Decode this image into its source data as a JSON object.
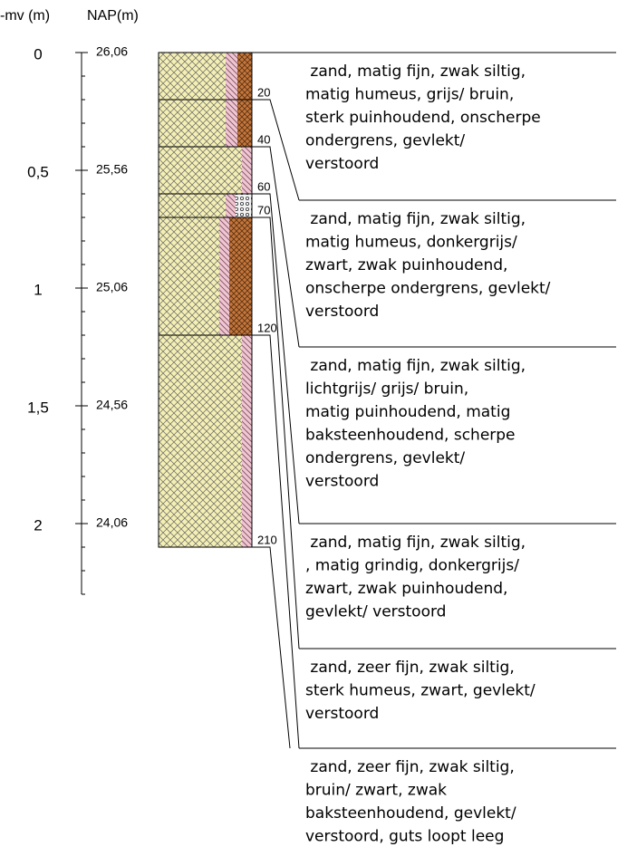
{
  "header": {
    "mv_label": "-mv (m)",
    "nap_label": "NAP(m)"
  },
  "axis": {
    "range": [
      0,
      2.3
    ],
    "minor_step": 0.1,
    "ticks": [
      0,
      {
        "value": 0.5,
        "label": "0,5"
      },
      1,
      {
        "value": 1.5,
        "label": "1,5"
      },
      2
    ],
    "nap_labels": [
      "26,06",
      "25,56",
      "25,06",
      "24,56",
      "24,06"
    ]
  },
  "layers": [
    {
      "bottom": 20,
      "description": [
        " zand, matig fijn, zwak siltig,",
        "matig humeus, grijs/ bruin,",
        "sterk puinhoudend, onscherpe",
        "ondergrens, gevlekt/",
        "verstoord"
      ]
    },
    {
      "bottom": 40,
      "description": [
        " zand, matig fijn, zwak siltig,",
        "matig humeus, donkergrijs/",
        "zwart, zwak puinhoudend,",
        "onscherpe ondergrens, gevlekt/",
        "verstoord"
      ]
    },
    {
      "bottom": 60,
      "description": [
        " zand, matig fijn, zwak siltig,",
        "lichtgrijs/ grijs/ bruin,",
        "matig puinhoudend, matig",
        "baksteenhoudend, scherpe",
        "ondergrens, gevlekt/",
        "verstoord"
      ]
    },
    {
      "bottom": 70,
      "description": [
        " zand, matig fijn, zwak siltig,",
        ", matig grindig, donkergrijs/",
        "zwart, zwak puinhoudend,",
        "gevlekt/ verstoord"
      ]
    },
    {
      "bottom": 120,
      "description": [
        " zand, zeer fijn, zwak siltig,",
        "sterk humeus, zwart, gevlekt/",
        "verstoord"
      ]
    },
    {
      "bottom": 210,
      "description": [
        " zand, zeer fijn, zwak siltig,",
        "bruin/ zwart, zwak",
        "baksteenhoudend, gevlekt/",
        "verstoord, guts loopt leeg"
      ]
    }
  ]
}
